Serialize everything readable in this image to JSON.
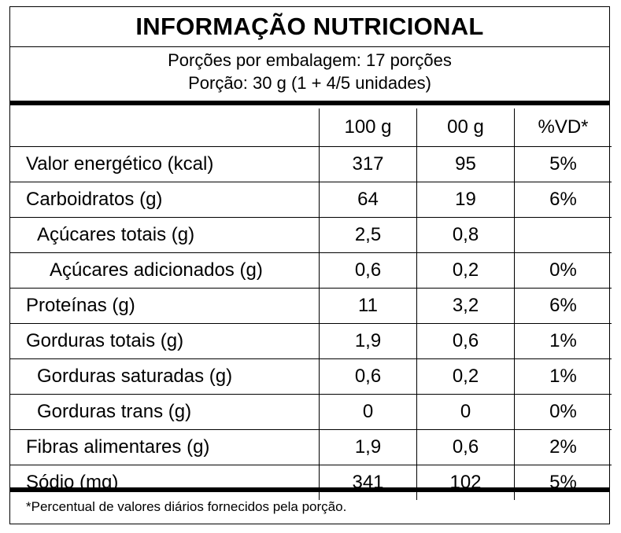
{
  "label": {
    "title": "INFORMAÇÃO NUTRICIONAL",
    "servings_per_package": "Porções por embalagem: 17 porções",
    "serving_size": "Porção: 30 g (1 + 4/5 unidades)",
    "columns": [
      "",
      "100 g",
      "00 g",
      "%VD*"
    ],
    "rows": [
      {
        "name": "Valor energético (kcal)",
        "indent": 0,
        "per100": "317",
        "perServing": "95",
        "dv": "5%"
      },
      {
        "name": "Carboidratos (g)",
        "indent": 0,
        "per100": "64",
        "perServing": "19",
        "dv": "6%"
      },
      {
        "name": "Açúcares totais (g)",
        "indent": 1,
        "per100": "2,5",
        "perServing": "0,8",
        "dv": ""
      },
      {
        "name": "Açúcares adicionados (g)",
        "indent": 2,
        "per100": "0,6",
        "perServing": "0,2",
        "dv": "0%"
      },
      {
        "name": "Proteínas (g)",
        "indent": 0,
        "per100": "11",
        "perServing": "3,2",
        "dv": "6%"
      },
      {
        "name": "Gorduras totais (g)",
        "indent": 0,
        "per100": "1,9",
        "perServing": "0,6",
        "dv": "1%"
      },
      {
        "name": "Gorduras saturadas (g)",
        "indent": 1,
        "per100": "0,6",
        "perServing": "0,2",
        "dv": "1%"
      },
      {
        "name": "Gorduras trans (g)",
        "indent": 1,
        "per100": "0",
        "perServing": "0",
        "dv": "0%"
      },
      {
        "name": "Fibras alimentares (g)",
        "indent": 0,
        "per100": "1,9",
        "perServing": "0,6",
        "dv": "2%"
      },
      {
        "name": "Sódio (mg)",
        "indent": 0,
        "per100": "341",
        "perServing": "102",
        "dv": "5%"
      }
    ],
    "footnote": "*Percentual de valores diários fornecidos pela porção."
  }
}
